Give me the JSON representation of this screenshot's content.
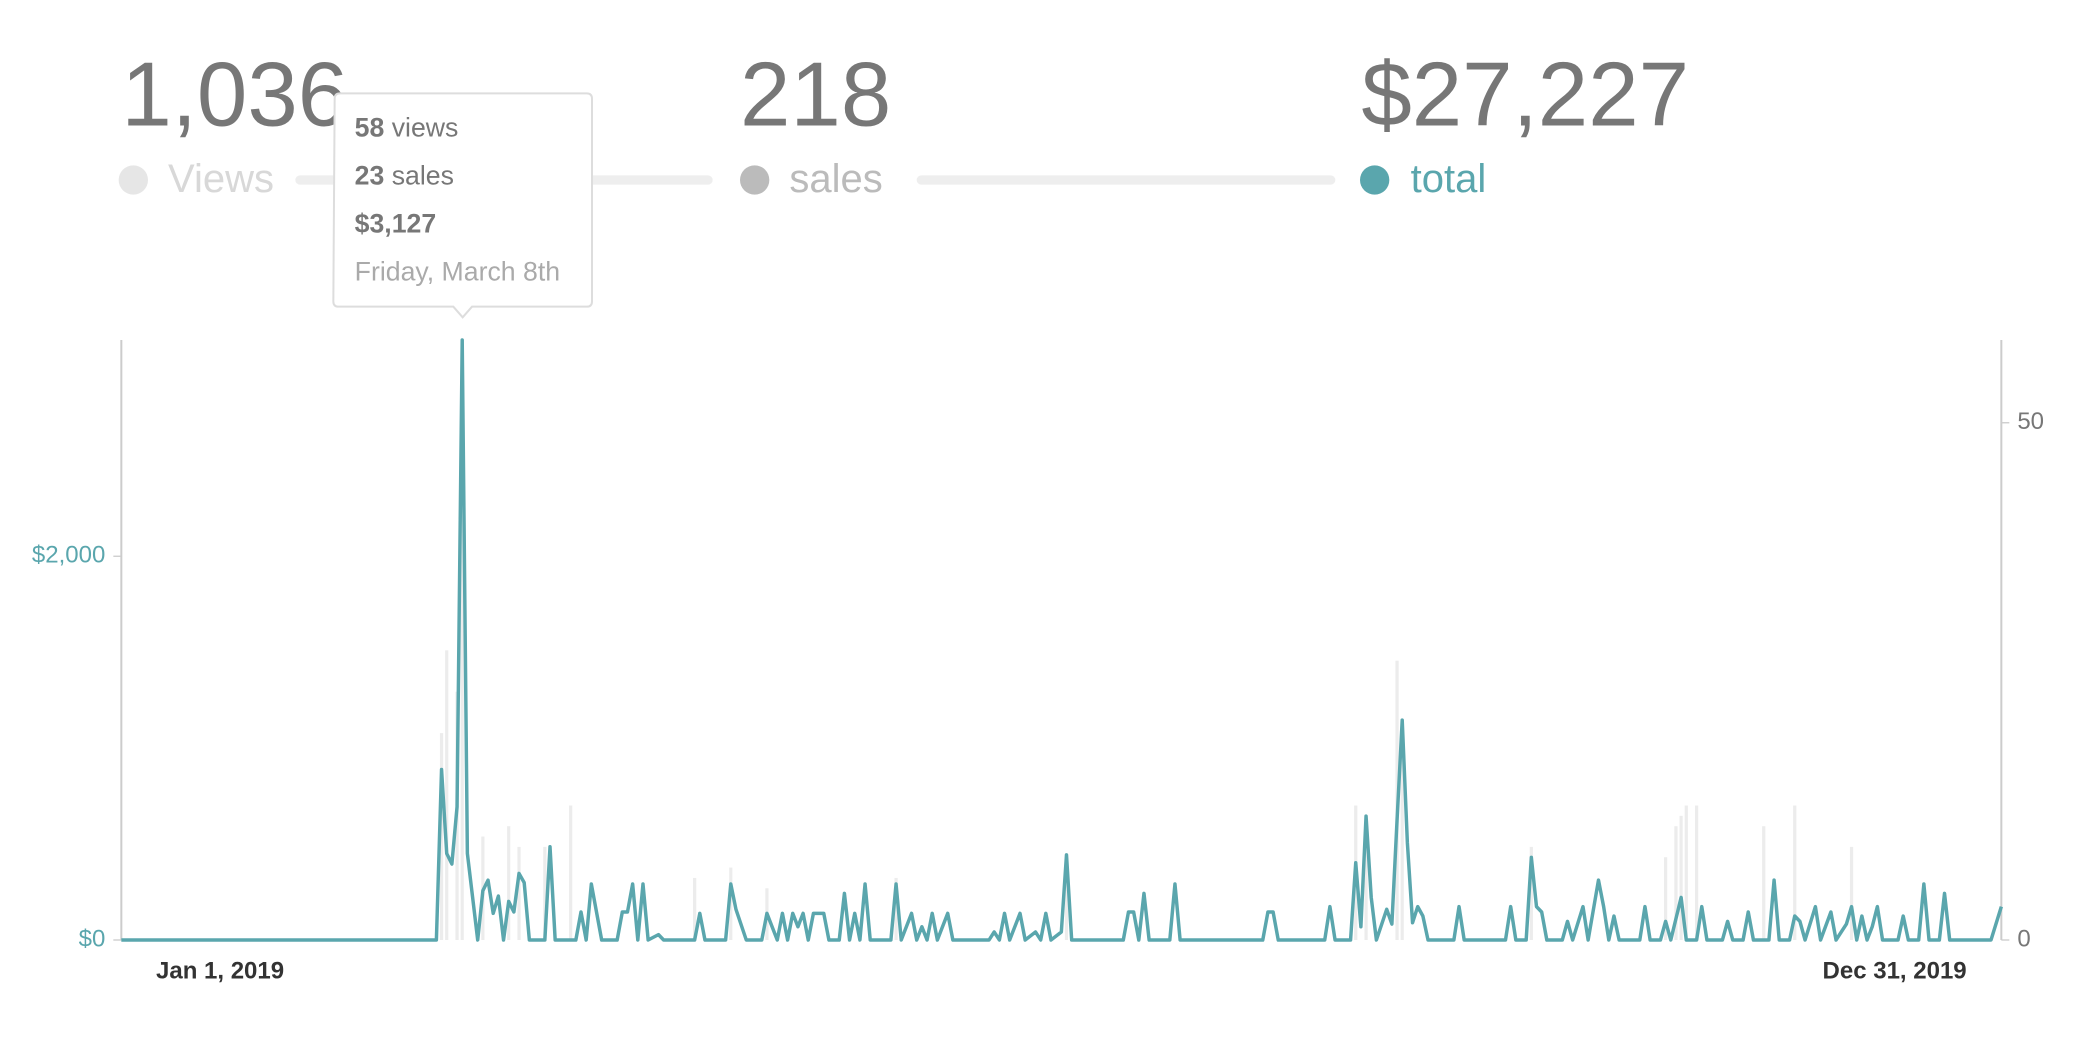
{
  "stats": [
    {
      "value": "1,036",
      "label": "Views"
    },
    {
      "value": "218",
      "label": "sales"
    },
    {
      "value": "$27,227",
      "label": "total"
    }
  ],
  "tooltip": {
    "rows": [
      {
        "value": "58",
        "label": "views"
      },
      {
        "value": "23",
        "label": "sales"
      }
    ],
    "total": "$3,127",
    "date": "Friday, March 8th"
  },
  "chart_data": {
    "type": "line",
    "xlim": [
      0,
      364
    ],
    "xticks": [
      {
        "value": 0,
        "label": "Jan 1, 2019"
      },
      {
        "value": 364,
        "label": "Dec 31, 2019"
      }
    ],
    "ylim": [
      0,
      3127
    ],
    "yticks": [
      {
        "value": 0,
        "label": "$0"
      },
      {
        "value": 2000,
        "label": "$2,000"
      }
    ],
    "y2lim": [
      0,
      58
    ],
    "y2ticks": [
      0,
      50
    ],
    "series": [
      {
        "color": "#5aa6ad",
        "x": [
          0,
          61,
          62,
          63,
          64,
          65,
          66,
          67,
          69,
          70,
          71,
          72,
          73,
          74,
          75,
          76,
          77,
          78,
          79,
          82,
          83,
          84,
          88,
          89,
          90,
          91,
          93,
          96,
          97,
          98,
          99,
          100,
          101,
          102,
          104,
          105,
          111,
          112,
          113,
          117,
          118,
          119,
          121,
          124,
          125,
          126,
          127,
          128,
          129,
          130,
          131,
          132,
          133,
          134,
          135,
          136,
          137,
          139,
          140,
          141,
          142,
          143,
          144,
          145,
          149,
          150,
          151,
          153,
          154,
          155,
          156,
          157,
          158,
          160,
          161,
          168,
          169,
          170,
          171,
          172,
          174,
          175,
          177,
          178,
          179,
          180,
          182,
          183,
          184,
          194,
          195,
          196,
          197,
          198,
          199,
          203,
          204,
          205,
          221,
          222,
          223,
          224,
          233,
          234,
          235,
          238,
          239,
          240,
          241,
          242,
          243,
          245,
          246,
          247,
          248,
          249,
          250,
          251,
          252,
          253,
          258,
          259,
          260,
          268,
          269,
          270,
          272,
          273,
          274,
          275,
          276,
          279,
          280,
          281,
          283,
          284,
          286,
          287,
          288,
          289,
          290,
          294,
          295,
          296,
          298,
          299,
          300,
          302,
          303,
          305,
          306,
          307,
          310,
          311,
          312,
          314,
          315,
          316,
          319,
          320,
          321,
          323,
          324,
          325,
          326,
          328,
          329,
          331,
          332,
          334,
          335,
          336,
          337,
          338,
          339,
          340,
          341,
          344,
          345,
          346,
          348,
          349,
          350,
          352,
          353,
          354,
          362,
          364
        ],
        "values": [
          0,
          0,
          889,
          451,
          396,
          694,
          3127,
          451,
          0,
          257,
          312,
          139,
          229,
          0,
          201,
          146,
          347,
          299,
          0,
          0,
          486,
          0,
          0,
          146,
          0,
          292,
          0,
          0,
          146,
          146,
          292,
          0,
          292,
          0,
          28,
          0,
          0,
          139,
          0,
          0,
          292,
          160,
          0,
          0,
          139,
          69,
          0,
          139,
          0,
          139,
          69,
          139,
          0,
          139,
          139,
          139,
          0,
          0,
          243,
          0,
          139,
          0,
          292,
          0,
          0,
          292,
          0,
          139,
          0,
          69,
          0,
          139,
          0,
          139,
          0,
          0,
          42,
          0,
          139,
          0,
          139,
          0,
          42,
          0,
          139,
          0,
          42,
          444,
          0,
          0,
          146,
          146,
          0,
          243,
          0,
          0,
          292,
          0,
          0,
          146,
          146,
          0,
          0,
          174,
          0,
          0,
          403,
          69,
          646,
          222,
          0,
          160,
          83,
          625,
          1146,
          507,
          90,
          174,
          125,
          0,
          0,
          174,
          0,
          0,
          174,
          0,
          0,
          431,
          174,
          146,
          0,
          0,
          97,
          0,
          174,
          0,
          312,
          174,
          0,
          125,
          0,
          0,
          174,
          0,
          0,
          97,
          0,
          222,
          0,
          0,
          174,
          0,
          0,
          97,
          0,
          0,
          146,
          0,
          0,
          312,
          0,
          0,
          125,
          97,
          0,
          174,
          0,
          146,
          0,
          83,
          174,
          0,
          125,
          0,
          69,
          174,
          0,
          0,
          125,
          0,
          0,
          292,
          0,
          0,
          243,
          0,
          0,
          174
        ]
      },
      {
        "type": "bar",
        "axis": "y2",
        "color": "#ececec",
        "x": [
          62,
          63,
          65,
          66,
          70,
          75,
          77,
          82,
          87,
          111,
          118,
          125,
          150,
          183,
          239,
          241,
          247,
          248,
          273,
          299,
          301,
          302,
          303,
          305,
          318,
          324,
          335
        ],
        "values": [
          20,
          28,
          24,
          58,
          10,
          11,
          9,
          9,
          13,
          6,
          7,
          5,
          6,
          6,
          13,
          9,
          27,
          19,
          9,
          8,
          11,
          12,
          13,
          13,
          11,
          13,
          9
        ]
      }
    ]
  }
}
